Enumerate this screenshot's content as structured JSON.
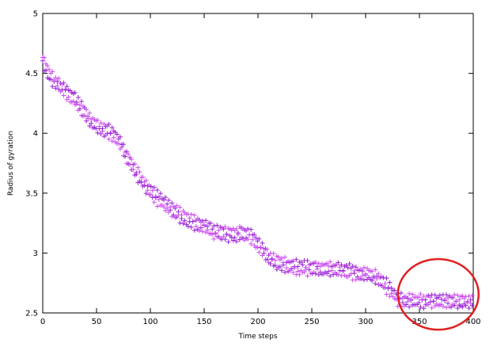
{
  "chart_data": {
    "type": "scatter",
    "title": "",
    "xlabel": "Time steps",
    "ylabel": "Radius of gyration",
    "xlim": [
      0,
      400
    ],
    "ylim": [
      2.5,
      5
    ],
    "xticks": [
      "0",
      "50",
      "100",
      "150",
      "200",
      "250",
      "300",
      "350",
      "400"
    ],
    "yticks": [
      "2.5",
      "3",
      "3.5",
      "4",
      "4.5",
      "5"
    ],
    "grid": false,
    "legend": "none",
    "marker": "plus",
    "colors": {
      "primary": "#9b1fd6",
      "secondary": "#cc4cf0",
      "highlight": "#e02020"
    },
    "annotation": {
      "type": "ellipse",
      "color": "#e02020",
      "x_range": [
        330,
        405
      ],
      "y_range": [
        2.36,
        2.95
      ]
    },
    "series": [
      {
        "name": "",
        "values_description_free": true,
        "x": [
          0,
          5,
          10,
          15,
          20,
          25,
          30,
          35,
          40,
          45,
          50,
          55,
          60,
          65,
          70,
          75,
          80,
          85,
          90,
          95,
          100,
          105,
          110,
          115,
          120,
          125,
          130,
          135,
          140,
          145,
          150,
          155,
          160,
          165,
          170,
          175,
          180,
          185,
          190,
          195,
          200,
          205,
          210,
          215,
          220,
          225,
          230,
          235,
          240,
          245,
          250,
          255,
          260,
          265,
          270,
          275,
          280,
          285,
          290,
          295,
          300,
          305,
          310,
          315,
          320,
          325,
          330,
          335,
          340,
          345,
          350,
          355,
          360,
          365,
          370,
          375,
          380,
          385,
          390,
          395,
          400
        ],
        "y": [
          4.62,
          4.5,
          4.44,
          4.4,
          4.36,
          4.32,
          4.28,
          4.22,
          4.16,
          4.1,
          4.06,
          4.03,
          4.02,
          4.0,
          3.94,
          3.86,
          3.78,
          3.7,
          3.63,
          3.57,
          3.52,
          3.47,
          3.43,
          3.4,
          3.36,
          3.33,
          3.3,
          3.28,
          3.26,
          3.24,
          3.22,
          3.2,
          3.18,
          3.17,
          3.16,
          3.16,
          3.16,
          3.17,
          3.16,
          3.12,
          3.07,
          3.01,
          2.96,
          2.93,
          2.91,
          2.9,
          2.89,
          2.88,
          2.88,
          2.88,
          2.87,
          2.87,
          2.87,
          2.87,
          2.86,
          2.86,
          2.85,
          2.85,
          2.84,
          2.83,
          2.82,
          2.81,
          2.8,
          2.77,
          2.72,
          2.67,
          2.62,
          2.6,
          2.6,
          2.6,
          2.6,
          2.6,
          2.6,
          2.6,
          2.6,
          2.6,
          2.6,
          2.6,
          2.6,
          2.6,
          2.6
        ]
      }
    ]
  }
}
